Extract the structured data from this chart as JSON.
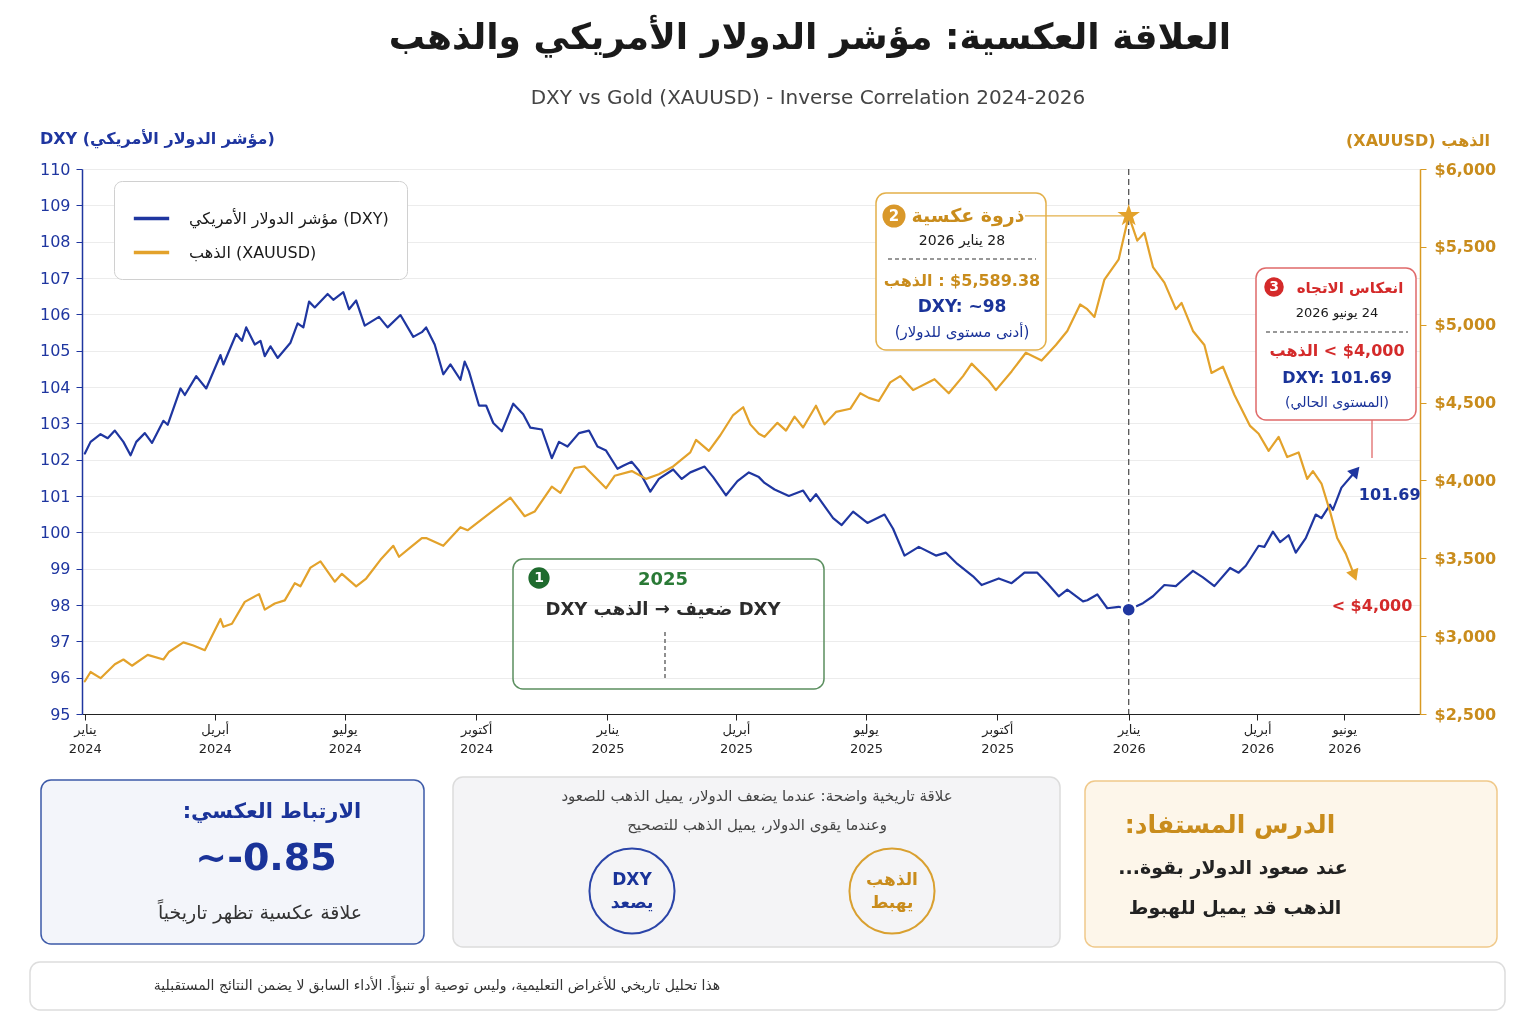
{
  "chart_data": {
    "type": "line",
    "title": "العلاقة العكسية: مؤشر الدولار الأمريكي والذهب",
    "subtitle": "DXY vs Gold (XAUUSD) - Inverse Correlation 2024-2026",
    "ylabel": "DXY (مؤشر الدولار الأمريكي)",
    "y2label": "الذهب (XAUUSD)",
    "xlim": [
      "2023-12-30",
      "2026-07-24"
    ],
    "xticks": [
      {
        "value": "2024-01-01",
        "label": "يناير 2024"
      },
      {
        "value": "2024-04-01",
        "label": "أبريل 2024"
      },
      {
        "value": "2024-07-01",
        "label": "يوليو 2024"
      },
      {
        "value": "2024-10-01",
        "label": "أكتوبر 2024"
      },
      {
        "value": "2025-01-01",
        "label": "يناير 2025"
      },
      {
        "value": "2025-04-01",
        "label": "أبريل 2025"
      },
      {
        "value": "2025-07-01",
        "label": "يوليو 2025"
      },
      {
        "value": "2025-10-01",
        "label": "أكتوبر 2025"
      },
      {
        "value": "2026-01-01",
        "label": "يناير 2026"
      },
      {
        "value": "2026-04-01",
        "label": "أبريل 2026"
      },
      {
        "value": "2026-06-01",
        "label": "يونيو 2026"
      }
    ],
    "ylim": [
      95,
      110
    ],
    "yticks": [
      95,
      96,
      97,
      98,
      99,
      100,
      101,
      102,
      103,
      104,
      105,
      106,
      107,
      108,
      109,
      110
    ],
    "y2lim": [
      2500,
      6000
    ],
    "y2ticks": [
      {
        "value": 2500,
        "label": "$2,500"
      },
      {
        "value": 3000,
        "label": "$3,000"
      },
      {
        "value": 3500,
        "label": "$3,500"
      },
      {
        "value": 4000,
        "label": "$4,000"
      },
      {
        "value": 4500,
        "label": "$4,500"
      },
      {
        "value": 5000,
        "label": "$5,000"
      },
      {
        "value": 5500,
        "label": "$5,500"
      },
      {
        "value": 6000,
        "label": "$6,000"
      }
    ],
    "grid": "y",
    "legend": "top left",
    "series": [
      {
        "name": "مؤشر الدولار الأمريكي (DXY)",
        "color": "#1f36a0",
        "x": [
          "2024-01-01",
          "2024-01-05",
          "2024-01-12",
          "2024-01-17",
          "2024-01-22",
          "2024-01-28",
          "2024-02-02",
          "2024-02-06",
          "2024-02-12",
          "2024-02-17",
          "2024-02-25",
          "2024-02-28",
          "2024-03-08",
          "2024-03-11",
          "2024-03-19",
          "2024-03-26",
          "2024-04-05",
          "2024-04-07",
          "2024-04-16",
          "2024-04-20",
          "2024-04-23",
          "2024-04-29",
          "2024-05-03",
          "2024-05-06",
          "2024-05-10",
          "2024-05-15",
          "2024-05-24",
          "2024-05-29",
          "2024-06-02",
          "2024-06-06",
          "2024-06-10",
          "2024-06-19",
          "2024-06-23",
          "2024-06-30",
          "2024-07-04",
          "2024-07-09",
          "2024-07-15",
          "2024-07-25",
          "2024-07-31",
          "2024-08-09",
          "2024-08-18",
          "2024-08-24",
          "2024-08-27",
          "2024-09-02",
          "2024-09-08",
          "2024-09-13",
          "2024-09-20",
          "2024-09-23",
          "2024-09-26",
          "2024-10-03",
          "2024-10-08",
          "2024-10-13",
          "2024-10-19",
          "2024-10-27",
          "2024-11-03",
          "2024-11-08",
          "2024-11-16",
          "2024-11-23",
          "2024-11-28",
          "2024-12-04",
          "2024-12-12",
          "2024-12-19",
          "2024-12-25",
          "2024-12-31",
          "2025-01-08",
          "2025-01-12",
          "2025-01-18",
          "2025-01-23",
          "2025-01-31",
          "2025-02-06",
          "2025-02-16",
          "2025-02-22",
          "2025-02-28",
          "2025-03-10",
          "2025-03-16",
          "2025-03-25",
          "2025-04-02",
          "2025-04-10",
          "2025-04-17",
          "2025-04-21",
          "2025-04-28",
          "2025-05-08",
          "2025-05-18",
          "2025-05-23",
          "2025-05-27",
          "2025-06-08",
          "2025-06-14",
          "2025-06-22",
          "2025-07-02",
          "2025-07-14",
          "2025-07-20",
          "2025-07-28",
          "2025-08-07",
          "2025-08-19",
          "2025-08-26",
          "2025-09-03",
          "2025-09-14",
          "2025-09-20",
          "2025-10-02",
          "2025-10-11",
          "2025-10-20",
          "2025-10-29",
          "2025-11-05",
          "2025-11-13",
          "2025-11-19",
          "2025-11-30",
          "2025-12-03",
          "2025-12-10",
          "2025-12-17",
          "2025-12-25",
          "2026-01-01",
          "2026-01-11",
          "2026-01-18",
          "2026-01-26",
          "2026-02-03",
          "2026-02-07",
          "2026-02-15",
          "2026-02-22",
          "2026-03-02",
          "2026-03-13",
          "2026-03-19",
          "2026-03-24",
          "2026-04-02",
          "2026-04-06",
          "2026-04-12",
          "2026-04-17",
          "2026-04-23",
          "2026-04-28",
          "2026-05-05",
          "2026-05-12",
          "2026-05-16",
          "2026-05-22",
          "2026-05-24",
          "2026-05-30",
          "2026-06-09"
        ],
        "values": [
          102.17,
          102.49,
          102.7,
          102.59,
          102.8,
          102.49,
          102.12,
          102.49,
          102.73,
          102.46,
          103.07,
          102.96,
          103.96,
          103.78,
          104.3,
          103.96,
          104.88,
          104.62,
          105.46,
          105.27,
          105.64,
          105.17,
          105.27,
          104.85,
          105.12,
          104.8,
          105.22,
          105.75,
          105.64,
          106.35,
          106.19,
          106.56,
          106.4,
          106.61,
          106.14,
          106.38,
          105.69,
          105.93,
          105.64,
          105.98,
          105.38,
          105.51,
          105.64,
          105.17,
          104.35,
          104.62,
          104.2,
          104.7,
          104.43,
          103.49,
          103.49,
          103.01,
          102.78,
          103.54,
          103.25,
          102.88,
          102.83,
          102.04,
          102.49,
          102.36,
          102.73,
          102.8,
          102.36,
          102.25,
          101.75,
          101.83,
          101.94,
          101.7,
          101.12,
          101.47,
          101.73,
          101.47,
          101.65,
          101.81,
          101.52,
          101.02,
          101.41,
          101.65,
          101.52,
          101.36,
          101.18,
          101.0,
          101.15,
          100.86,
          101.05,
          100.39,
          100.2,
          100.57,
          100.26,
          100.49,
          100.1,
          99.36,
          99.6,
          99.36,
          99.44,
          99.13,
          98.79,
          98.55,
          98.73,
          98.6,
          98.89,
          98.89,
          98.6,
          98.24,
          98.42,
          98.1,
          98.13,
          98.29,
          97.91,
          97.95,
          97.87,
          98.05,
          98.24,
          98.55,
          98.52,
          98.66,
          98.94,
          98.76,
          98.52,
          99.02,
          98.89,
          99.08,
          99.63,
          99.6,
          100.02,
          99.73,
          99.92,
          99.44,
          99.84,
          100.49,
          100.39,
          100.76,
          100.62,
          101.23,
          101.69
        ]
      },
      {
        "name": "الذهب (XAUUSD)",
        "color": "#e3a22b",
        "axis": "y2",
        "x": [
          "2024-01-01",
          "2024-01-05",
          "2024-01-12",
          "2024-01-22",
          "2024-01-28",
          "2024-02-03",
          "2024-02-14",
          "2024-02-25",
          "2024-02-29",
          "2024-03-10",
          "2024-03-17",
          "2024-03-25",
          "2024-04-05",
          "2024-04-07",
          "2024-04-13",
          "2024-04-22",
          "2024-05-02",
          "2024-05-06",
          "2024-05-13",
          "2024-05-20",
          "2024-05-27",
          "2024-05-31",
          "2024-06-07",
          "2024-06-14",
          "2024-06-24",
          "2024-06-29",
          "2024-07-09",
          "2024-07-16",
          "2024-07-26",
          "2024-08-04",
          "2024-08-08",
          "2024-08-16",
          "2024-08-24",
          "2024-08-27",
          "2024-09-08",
          "2024-09-20",
          "2024-09-25",
          "2024-10-12",
          "2024-10-25",
          "2024-11-04",
          "2024-11-11",
          "2024-11-23",
          "2024-11-29",
          "2024-12-09",
          "2024-12-16",
          "2024-12-31",
          "2025-01-06",
          "2025-01-18",
          "2025-01-28",
          "2025-02-06",
          "2025-02-16",
          "2025-02-28",
          "2025-03-04",
          "2025-03-13",
          "2025-03-21",
          "2025-03-30",
          "2025-04-06",
          "2025-04-11",
          "2025-04-17",
          "2025-04-21",
          "2025-04-30",
          "2025-05-06",
          "2025-05-12",
          "2025-05-18",
          "2025-05-27",
          "2025-06-02",
          "2025-06-10",
          "2025-06-20",
          "2025-06-27",
          "2025-07-03",
          "2025-07-10",
          "2025-07-18",
          "2025-07-25",
          "2025-08-03",
          "2025-08-18",
          "2025-08-28",
          "2025-09-07",
          "2025-09-13",
          "2025-09-25",
          "2025-09-30",
          "2025-10-11",
          "2025-10-21",
          "2025-11-01",
          "2025-11-11",
          "2025-11-19",
          "2025-11-28",
          "2025-12-03",
          "2025-12-08",
          "2025-12-15",
          "2025-12-25",
          "2026-01-01",
          "2026-01-07",
          "2026-01-12",
          "2026-01-18",
          "2026-01-26",
          "2026-02-03",
          "2026-02-07",
          "2026-02-15",
          "2026-02-23",
          "2026-02-28",
          "2026-03-08",
          "2026-03-16",
          "2026-03-27",
          "2026-04-02",
          "2026-04-09",
          "2026-04-16",
          "2026-04-22",
          "2026-04-30",
          "2026-05-06",
          "2026-05-10",
          "2026-05-16",
          "2026-05-22",
          "2026-05-27",
          "2026-06-02",
          "2026-06-08"
        ],
        "values": [
          2710,
          2770,
          2730,
          2820,
          2850,
          2810,
          2880,
          2850,
          2900,
          2960,
          2940,
          2910,
          3110,
          3060,
          3080,
          3220,
          3270,
          3170,
          3210,
          3230,
          3340,
          3320,
          3440,
          3480,
          3350,
          3400,
          3320,
          3370,
          3490,
          3580,
          3510,
          3570,
          3630,
          3630,
          3580,
          3700,
          3680,
          3800,
          3890,
          3770,
          3800,
          3960,
          3920,
          4080,
          4090,
          3950,
          4030,
          4060,
          4010,
          4040,
          4090,
          4180,
          4260,
          4190,
          4290,
          4420,
          4470,
          4360,
          4300,
          4280,
          4370,
          4320,
          4410,
          4340,
          4480,
          4360,
          4440,
          4460,
          4560,
          4530,
          4510,
          4630,
          4670,
          4580,
          4650,
          4560,
          4670,
          4750,
          4640,
          4580,
          4700,
          4820,
          4770,
          4870,
          4960,
          5130,
          5100,
          5050,
          5290,
          5420,
          5700,
          5540,
          5590,
          5370,
          5270,
          5100,
          5140,
          4960,
          4870,
          4690,
          4730,
          4550,
          4350,
          4300,
          4190,
          4280,
          4150,
          4180,
          4010,
          4060,
          3980,
          3800,
          3630,
          3530,
          3390
        ]
      },
      {
        "type": "scatter",
        "marker": "star",
        "axis": "y2",
        "color": "#e3a22b",
        "x": [
          "2026-01-01"
        ],
        "values": [
          5700
        ]
      },
      {
        "type": "scatter",
        "marker": "circle",
        "color": "#1f36a0",
        "x": [
          "2026-01-01"
        ],
        "values": [
          97.87
        ]
      }
    ],
    "ref_lines": [
      {
        "axis": "x",
        "value": "2026-01-01",
        "color": "#555555",
        "line_style": "dashed"
      }
    ],
    "annotations": [
      "2",
      {
        "text": "ذروة عكسية",
        "x": "2026-01-01",
        "y": 108.71
      },
      "28 يناير 2026",
      "$5,589.38 : الذهب",
      "DXY: ~98",
      "(أدنى مستوى للدولار)",
      "3",
      "انعكاس الاتجاه",
      "24 يونيو 2026",
      "$4,000 > الذهب",
      "DXY: 101.69",
      "(المستوى الحالي)",
      "1",
      "2025",
      "DXY ضعيف → الذهب DXY",
      {
        "text": "101.69",
        "x": "2026-06-09",
        "y": 101.69
      },
      "< $4,000",
      "الارتباط العكسي:",
      "~-0.85",
      "علاقة عكسية تظهر تاريخياً",
      "علاقة تاريخية واضحة: عندما يضعف الدولار، يميل الذهب للصعود",
      "وعندما يقوى الدولار، يميل الذهب للتصحيح",
      "DXY",
      "يصعد",
      "الذهب",
      "يهبط",
      "الدرس المستفاد:",
      "عند صعود الدولار بقوة...",
      "الذهب قد يميل للهبوط",
      "هذا تحليل تاريخي للأغراض التعليمية، وليس توصية أو تنبؤاً.  الأداء السابق لا يضمن النتائج المستقبلية"
    ]
  }
}
